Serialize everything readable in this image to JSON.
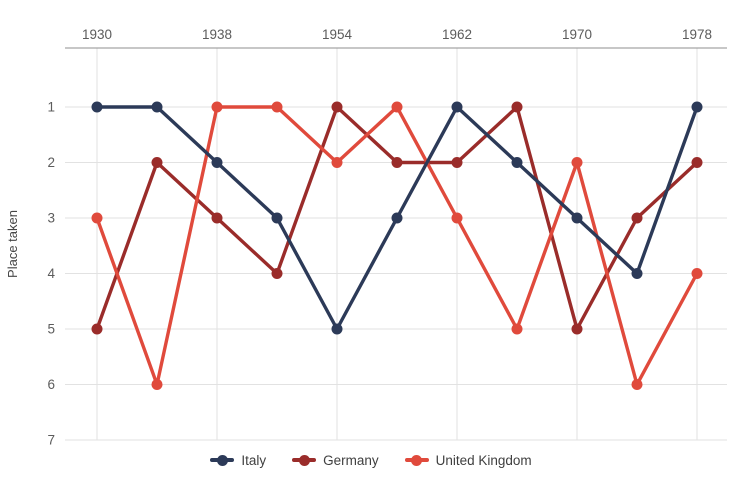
{
  "style": {
    "background": "#ffffff",
    "grid_color": "#e2e2e2",
    "axis_line_color": "#8f8f8f",
    "tick_color": "#5c5c5c",
    "axis_title_color": "#464646",
    "legend_text_color": "#3f3f3f"
  },
  "chart_data": {
    "type": "line",
    "title": "",
    "xlabel": "",
    "ylabel": "Place taken",
    "x": [
      1930,
      1934,
      1938,
      1950,
      1954,
      1958,
      1962,
      1966,
      1970,
      1974,
      1978
    ],
    "x_tick_labels": [
      "1930",
      "1938",
      "1954",
      "1962",
      "1970",
      "1978"
    ],
    "x_axis_position": "top",
    "y_ticks": [
      1,
      2,
      3,
      4,
      5,
      6,
      7
    ],
    "ylim": [
      1,
      7
    ],
    "y_inverted": true,
    "grid": true,
    "legend_position": "bottom",
    "marker": "circle",
    "series": [
      {
        "name": "Italy",
        "color": "#2c3a58",
        "z": 2,
        "values": [
          1,
          1,
          2,
          3,
          5,
          3,
          1,
          2,
          3,
          4,
          1
        ]
      },
      {
        "name": "Germany",
        "color": "#9a2c2a",
        "z": 0,
        "values": [
          5,
          2,
          3,
          4,
          1,
          2,
          2,
          1,
          5,
          3,
          2
        ]
      },
      {
        "name": "United Kingdom",
        "color": "#e04a3c",
        "z": 1,
        "values": [
          3,
          6,
          1,
          1,
          2,
          1,
          3,
          5,
          2,
          6,
          4
        ]
      }
    ]
  }
}
